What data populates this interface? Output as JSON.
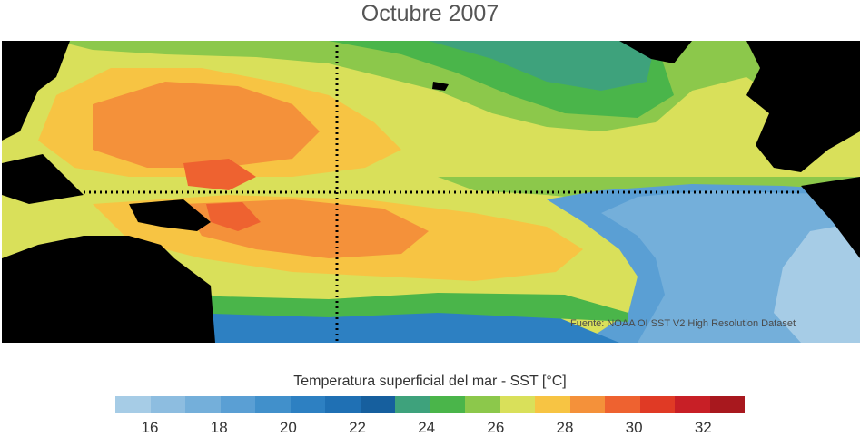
{
  "title": "Octubre 2007",
  "source_note": "Fuente: NOAA OI SST V2 High Resolution Dataset",
  "colorbar": {
    "label": "Temperatura superficial del mar - SST  [°C]",
    "colors": [
      "#a6cce6",
      "#8dbde0",
      "#74afda",
      "#5a9fd4",
      "#4190cb",
      "#2d80c2",
      "#1f70b4",
      "#165f9e",
      "#3ea27c",
      "#4ab54a",
      "#8cc84b",
      "#d9e05a",
      "#f7c443",
      "#f4913a",
      "#ee6230",
      "#e03a25",
      "#c81f26",
      "#a8181e"
    ],
    "tick_labels": [
      "16",
      "18",
      "20",
      "22",
      "24",
      "26",
      "28",
      "30",
      "32"
    ],
    "tick_values": [
      16,
      18,
      20,
      22,
      24,
      26,
      28,
      30,
      32
    ],
    "range": [
      15,
      33.2
    ]
  }
}
